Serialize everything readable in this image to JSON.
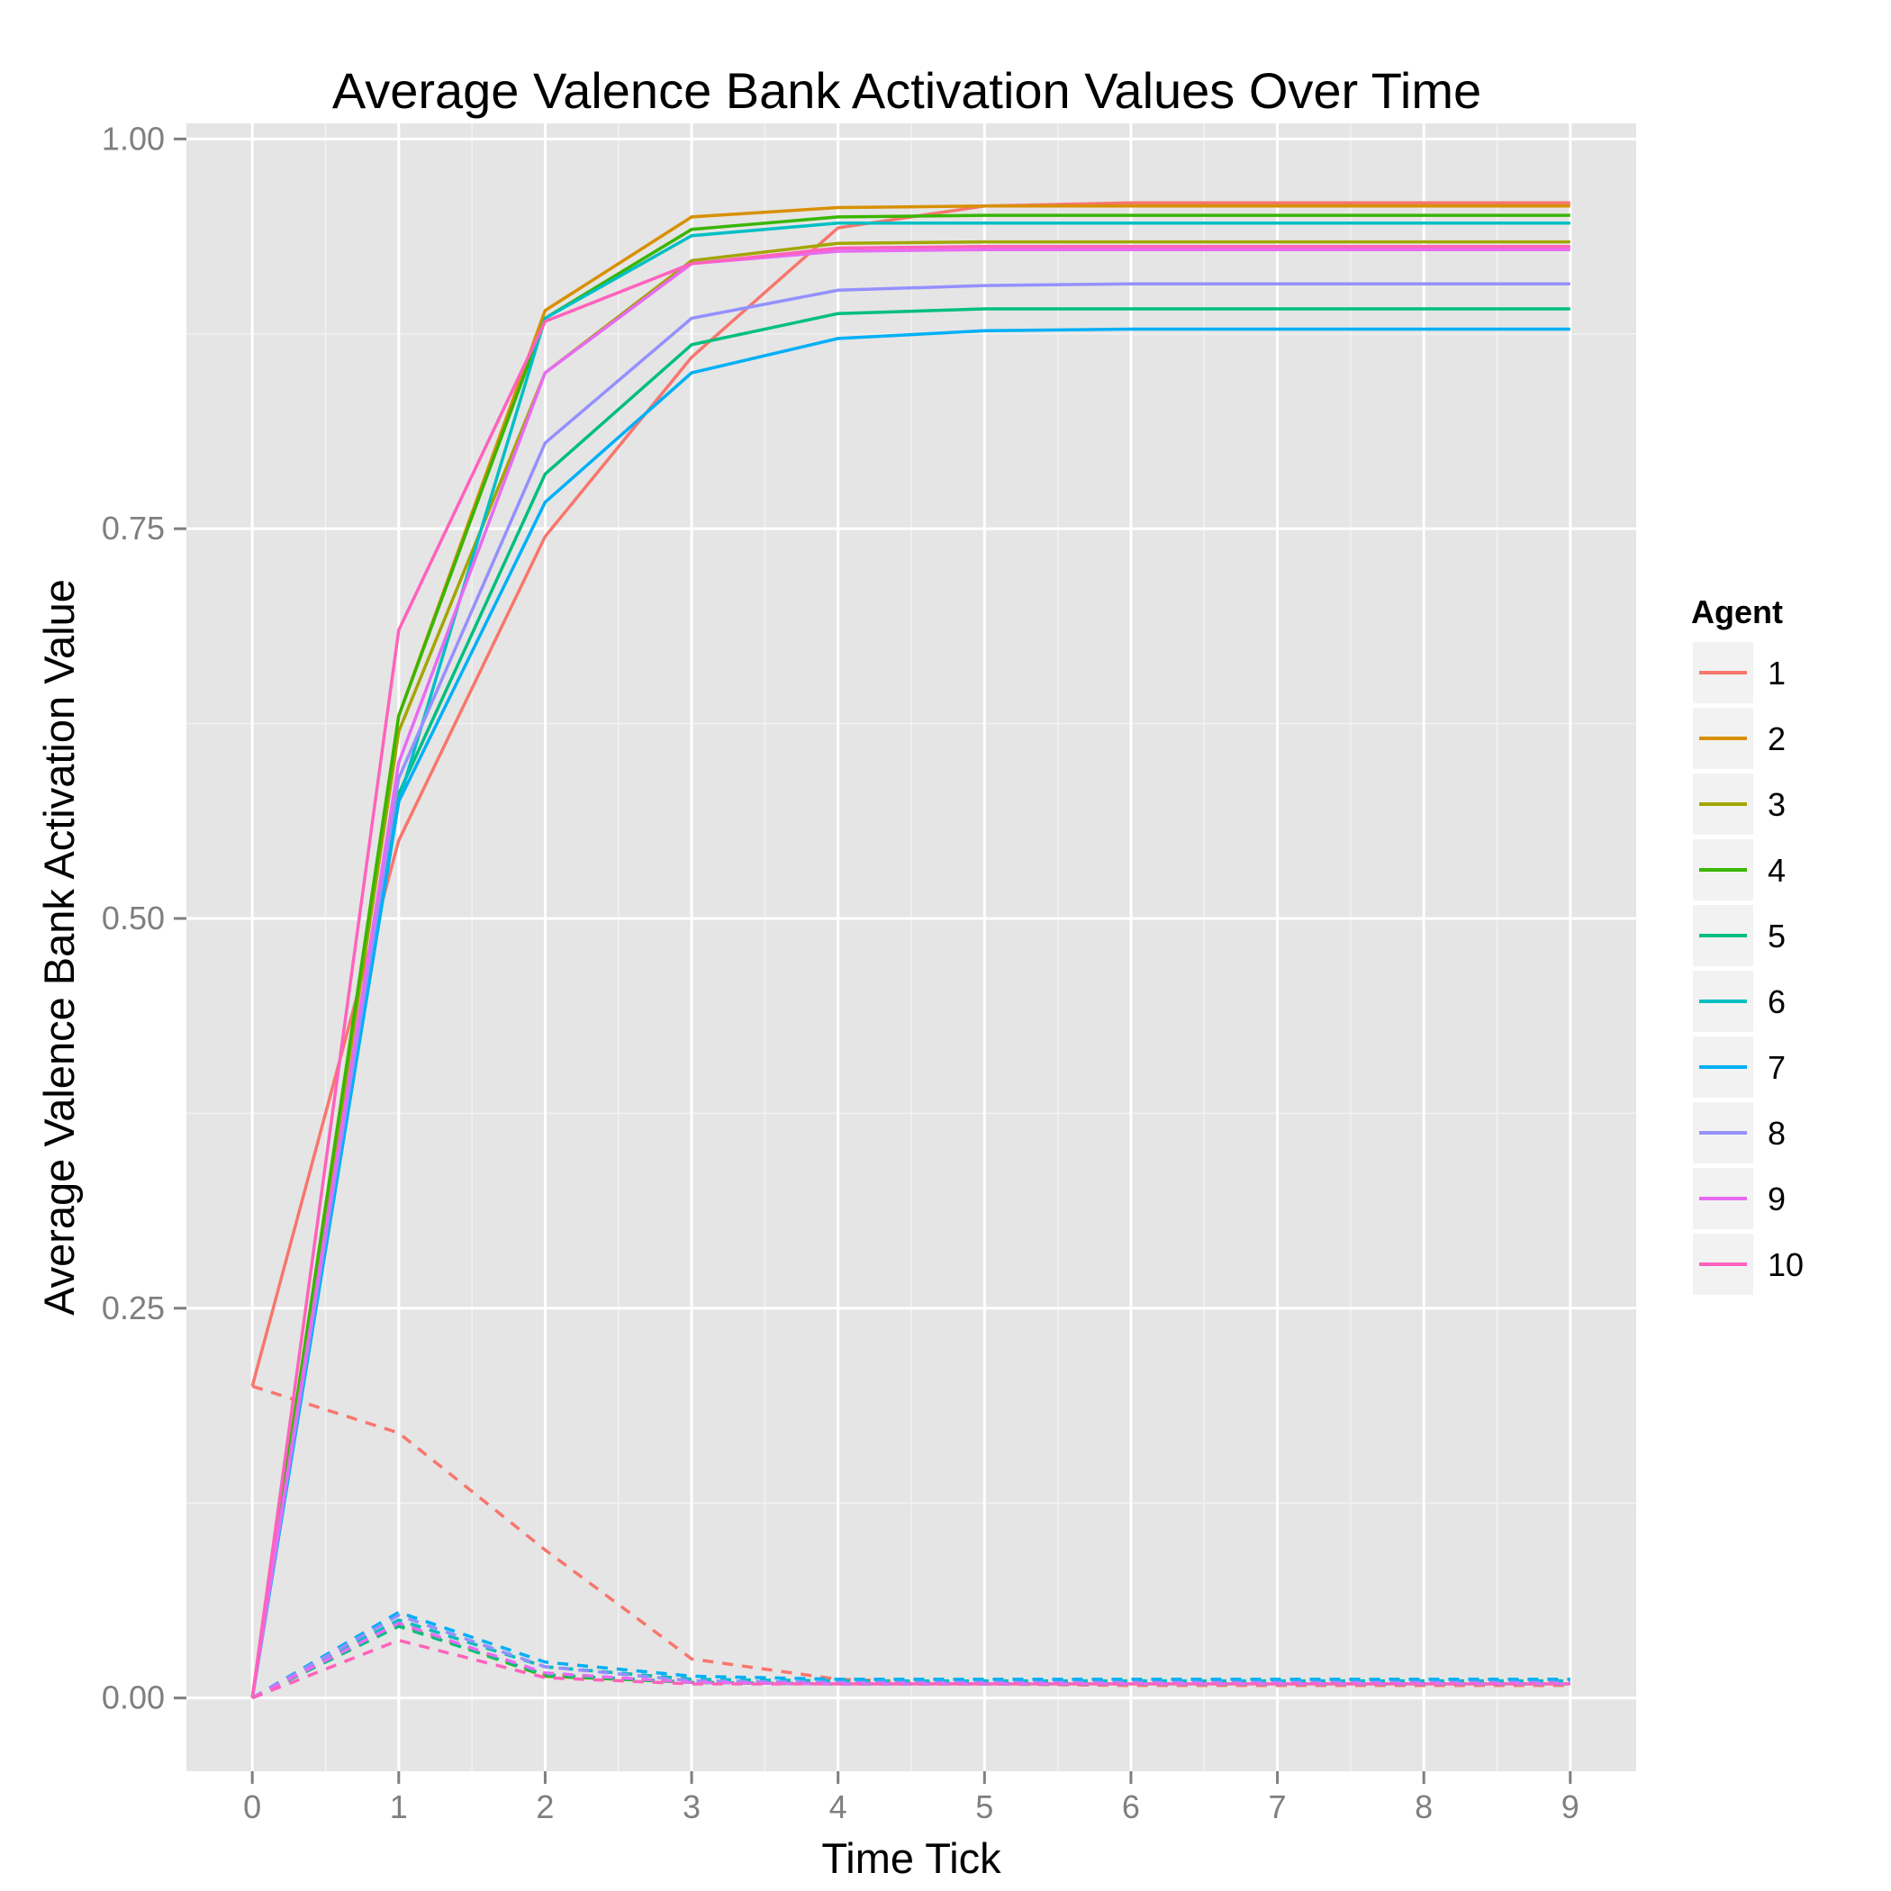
{
  "chart_data": {
    "type": "line",
    "title": "Average Valence Bank Activation Values Over Time",
    "xlabel": "Time Tick",
    "ylabel": "Average Valence Bank Activation Value",
    "x": [
      0,
      1,
      2,
      3,
      4,
      5,
      6,
      7,
      8,
      9
    ],
    "xlim": [
      -0.45,
      9.45
    ],
    "ylim": [
      -0.047,
      1.01
    ],
    "x_ticks": [
      "0",
      "1",
      "2",
      "3",
      "4",
      "5",
      "6",
      "7",
      "8",
      "9"
    ],
    "y_ticks": [
      "0.00",
      "0.25",
      "0.50",
      "0.75",
      "1.00"
    ],
    "y_tick_values": [
      0,
      0.25,
      0.5,
      0.75,
      1.0
    ],
    "grid": true,
    "legend": {
      "title": "Agent",
      "position": "right"
    },
    "series": [
      {
        "name": "1",
        "color": "#F8766D",
        "solid": [
          0.2,
          0.55,
          0.745,
          0.86,
          0.943,
          0.957,
          0.959,
          0.959,
          0.959,
          0.959
        ],
        "dashed": [
          0.2,
          0.17,
          0.095,
          0.025,
          0.012,
          0.009,
          0.008,
          0.008,
          0.008,
          0.008
        ]
      },
      {
        "name": "2",
        "color": "#D89000",
        "solid": [
          0.0,
          0.63,
          0.89,
          0.95,
          0.956,
          0.957,
          0.957,
          0.957,
          0.957,
          0.957
        ],
        "dashed": [
          0.0,
          0.05,
          0.02,
          0.012,
          0.01,
          0.01,
          0.01,
          0.01,
          0.01,
          0.01
        ]
      },
      {
        "name": "3",
        "color": "#A3A500",
        "solid": [
          0.0,
          0.62,
          0.85,
          0.922,
          0.933,
          0.934,
          0.934,
          0.934,
          0.934,
          0.934
        ],
        "dashed": [
          0.0,
          0.048,
          0.015,
          0.01,
          0.009,
          0.009,
          0.009,
          0.009,
          0.009,
          0.009
        ]
      },
      {
        "name": "4",
        "color": "#39B600",
        "solid": [
          0.0,
          0.63,
          0.885,
          0.942,
          0.95,
          0.951,
          0.951,
          0.951,
          0.951,
          0.951
        ],
        "dashed": [
          0.0,
          0.047,
          0.014,
          0.01,
          0.009,
          0.009,
          0.009,
          0.009,
          0.009,
          0.009
        ]
      },
      {
        "name": "5",
        "color": "#00BF7D",
        "solid": [
          0.0,
          0.58,
          0.785,
          0.868,
          0.888,
          0.891,
          0.891,
          0.891,
          0.891,
          0.891
        ],
        "dashed": [
          0.0,
          0.046,
          0.015,
          0.01,
          0.009,
          0.009,
          0.009,
          0.009,
          0.009,
          0.009
        ]
      },
      {
        "name": "6",
        "color": "#00BFC4",
        "solid": [
          0.0,
          0.575,
          0.885,
          0.938,
          0.946,
          0.946,
          0.946,
          0.946,
          0.946,
          0.946
        ],
        "dashed": [
          0.0,
          0.05,
          0.02,
          0.012,
          0.011,
          0.011,
          0.011,
          0.011,
          0.011,
          0.011
        ]
      },
      {
        "name": "7",
        "color": "#00B0F6",
        "solid": [
          0.0,
          0.575,
          0.767,
          0.85,
          0.872,
          0.877,
          0.878,
          0.878,
          0.878,
          0.878
        ],
        "dashed": [
          0.0,
          0.055,
          0.023,
          0.014,
          0.012,
          0.012,
          0.012,
          0.012,
          0.012,
          0.012
        ]
      },
      {
        "name": "8",
        "color": "#9590FF",
        "solid": [
          0.0,
          0.59,
          0.805,
          0.885,
          0.903,
          0.906,
          0.907,
          0.907,
          0.907,
          0.907
        ],
        "dashed": [
          0.0,
          0.053,
          0.02,
          0.011,
          0.01,
          0.01,
          0.01,
          0.01,
          0.01,
          0.01
        ]
      },
      {
        "name": "9",
        "color": "#E76BF3",
        "solid": [
          0.0,
          0.6,
          0.85,
          0.92,
          0.928,
          0.929,
          0.929,
          0.929,
          0.929,
          0.929
        ],
        "dashed": [
          0.0,
          0.048,
          0.016,
          0.01,
          0.009,
          0.009,
          0.009,
          0.009,
          0.009,
          0.009
        ]
      },
      {
        "name": "10",
        "color": "#FF62BC",
        "solid": [
          0.0,
          0.685,
          0.883,
          0.92,
          0.93,
          0.931,
          0.931,
          0.931,
          0.931,
          0.931
        ],
        "dashed": [
          0.0,
          0.037,
          0.013,
          0.009,
          0.009,
          0.009,
          0.009,
          0.009,
          0.009,
          0.009
        ]
      }
    ]
  },
  "colors": {
    "panel_background": "#E5E5E5",
    "grid_major": "#FFFFFF",
    "grid_minor": "#F2F2F2",
    "tick_label": "#7F7F7F",
    "legend_key_background": "#F2F2F2"
  }
}
